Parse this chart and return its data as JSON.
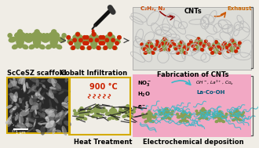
{
  "background_color": "#f0ede6",
  "panels": {
    "top_left_label": "ScCeSZ scaffold",
    "top_mid_label": "Cobalt Infiltration",
    "top_right_label": "Fabrication of CNTs",
    "bot_left_scale": "1 μm",
    "bot_mid_label": "Heat Treatment",
    "bot_mid_temp": "900 °C",
    "bot_right_label": "Electrochemical deposition",
    "cnt_label": "CNTs",
    "c2h2_label": "C₂H₂, N₂",
    "exhaust_label": "Exhaust"
  },
  "colors": {
    "olive": "#8a9e52",
    "olive_dark": "#6b7d3e",
    "red_dot": "#cc2200",
    "cnt_gray": "#b8b8b8",
    "teal": "#3ab8c8",
    "pink_bg": "#f2a8c4",
    "sem_bg": "#282828",
    "yellow_border": "#d4aa00",
    "heat_red": "#cc2200",
    "arrow_dark": "#444444",
    "c2h2_color": "#cc4400",
    "exhaust_color": "#cc6600",
    "text_black": "#111111",
    "bracket_color": "#555555",
    "cnt_bg": "#ddddd8"
  },
  "lfs": 6.0,
  "sfs": 5.0
}
